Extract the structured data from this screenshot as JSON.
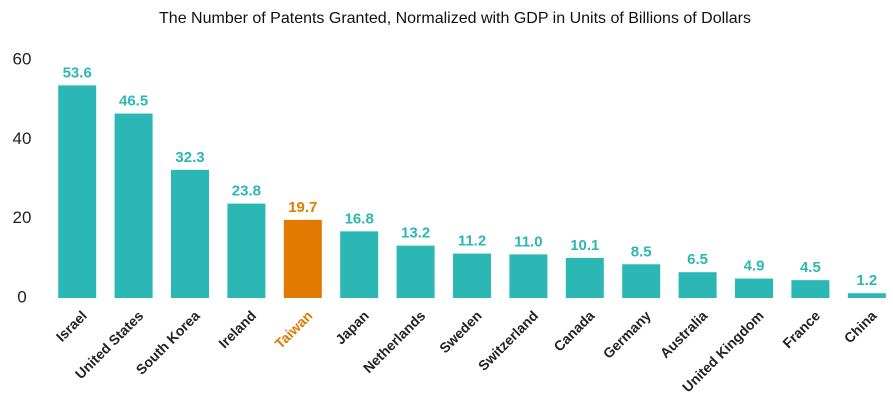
{
  "chart_data": {
    "type": "bar",
    "title": "The Number of Patents Granted, Normalized with GDP in Units of Billions of Dollars",
    "categories": [
      "Israel",
      "United States",
      "South Korea",
      "Ireland",
      "Taiwan",
      "Japan",
      "Netherlands",
      "Sweden",
      "Switzerland",
      "Canada",
      "Germany",
      "Australia",
      "United Kingdom",
      "France",
      "China"
    ],
    "values": [
      53.6,
      46.5,
      32.3,
      23.8,
      19.7,
      16.8,
      13.2,
      11.2,
      11.0,
      10.1,
      8.5,
      6.5,
      4.9,
      4.5,
      1.2
    ],
    "value_labels": [
      "53.6",
      "46.5",
      "32.3",
      "23.8",
      "19.7",
      "16.8",
      "13.2",
      "11.2",
      "11.0",
      "10.1",
      "8.5",
      "6.5",
      "4.9",
      "4.5",
      "1.2"
    ],
    "colors": [
      "#2bb7b3",
      "#2bb7b3",
      "#2bb7b3",
      "#2bb7b3",
      "#e07a00",
      "#2bb7b3",
      "#2bb7b3",
      "#2bb7b3",
      "#2bb7b3",
      "#2bb7b3",
      "#2bb7b3",
      "#2bb7b3",
      "#2bb7b3",
      "#2bb7b3",
      "#2bb7b3"
    ],
    "ylim": [
      0,
      60
    ],
    "yticks": [
      0,
      20,
      40,
      60
    ],
    "grid": false
  }
}
